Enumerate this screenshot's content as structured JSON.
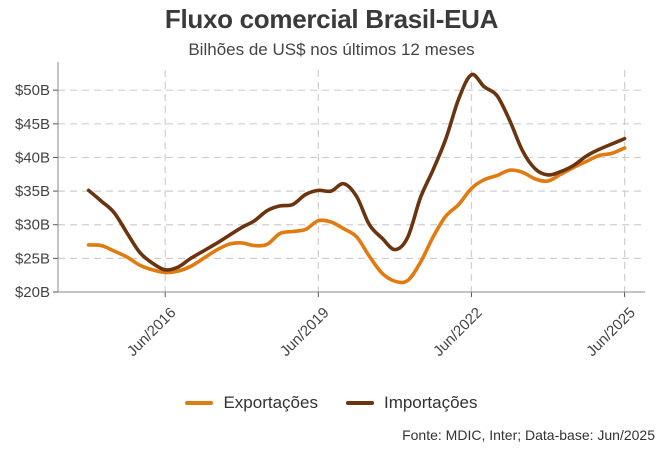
{
  "chart_data": {
    "type": "line",
    "title": "Fluxo comercial Brasil-EUA",
    "subtitle": "Bilhões de US$ nos últimos 12 meses",
    "xlabel": "",
    "ylabel": "",
    "ylim": [
      20,
      53
    ],
    "xlim": [
      2014.4,
      2025.9
    ],
    "grid": true,
    "y_ticks": [
      20,
      25,
      30,
      35,
      40,
      45,
      50
    ],
    "y_tick_labels": [
      "$20B",
      "$25B",
      "$30B",
      "$35B",
      "$40B",
      "$45B",
      "$50B"
    ],
    "x_ticks": [
      2016.5,
      2019.5,
      2022.5,
      2025.5
    ],
    "x_tick_labels": [
      "Jun/2016",
      "Jun/2019",
      "Jun/2022",
      "Jun/2025"
    ],
    "legend_position": "bottom",
    "series": [
      {
        "name": "Exportações",
        "color": "#e07b12",
        "x": [
          2015.0,
          2015.25,
          2015.5,
          2015.75,
          2016.0,
          2016.25,
          2016.5,
          2016.75,
          2017.0,
          2017.25,
          2017.5,
          2017.75,
          2018.0,
          2018.25,
          2018.5,
          2018.75,
          2019.0,
          2019.25,
          2019.5,
          2019.75,
          2020.0,
          2020.25,
          2020.5,
          2020.75,
          2021.0,
          2021.25,
          2021.5,
          2021.75,
          2022.0,
          2022.25,
          2022.5,
          2022.75,
          2023.0,
          2023.25,
          2023.5,
          2023.75,
          2024.0,
          2024.25,
          2024.5,
          2024.75,
          2025.0,
          2025.25,
          2025.5
        ],
        "values": [
          27.0,
          26.9,
          26.1,
          25.2,
          24.0,
          23.3,
          22.9,
          23.1,
          23.8,
          25.0,
          26.2,
          27.1,
          27.3,
          26.9,
          27.1,
          28.7,
          29.0,
          29.3,
          30.6,
          30.4,
          29.4,
          28.2,
          25.3,
          22.8,
          21.6,
          21.7,
          24.4,
          28.2,
          31.3,
          33.0,
          35.4,
          36.7,
          37.3,
          38.1,
          37.8,
          36.8,
          36.5,
          37.5,
          38.5,
          39.4,
          40.3,
          40.6,
          41.4
        ]
      },
      {
        "name": "Importações",
        "color": "#6b3410",
        "x": [
          2015.0,
          2015.25,
          2015.5,
          2015.75,
          2016.0,
          2016.25,
          2016.5,
          2016.75,
          2017.0,
          2017.25,
          2017.5,
          2017.75,
          2018.0,
          2018.25,
          2018.5,
          2018.75,
          2019.0,
          2019.25,
          2019.5,
          2019.75,
          2020.0,
          2020.25,
          2020.5,
          2020.75,
          2021.0,
          2021.25,
          2021.5,
          2021.75,
          2022.0,
          2022.25,
          2022.5,
          2022.75,
          2023.0,
          2023.25,
          2023.5,
          2023.75,
          2024.0,
          2024.25,
          2024.5,
          2024.75,
          2025.0,
          2025.25,
          2025.5
        ],
        "values": [
          35.1,
          33.5,
          31.8,
          28.8,
          25.9,
          24.3,
          23.3,
          23.7,
          25.0,
          26.1,
          27.2,
          28.4,
          29.6,
          30.6,
          32.1,
          32.8,
          33.0,
          34.5,
          35.1,
          35.0,
          36.1,
          34.2,
          30.0,
          28.0,
          26.3,
          28.1,
          34.0,
          38.2,
          42.8,
          48.7,
          52.3,
          50.5,
          49.2,
          45.5,
          41.0,
          38.3,
          37.4,
          37.9,
          38.8,
          40.2,
          41.2,
          42.0,
          42.8
        ]
      }
    ],
    "source": "Fonte: MDIC, Inter; Data-base: Jun/2025"
  }
}
